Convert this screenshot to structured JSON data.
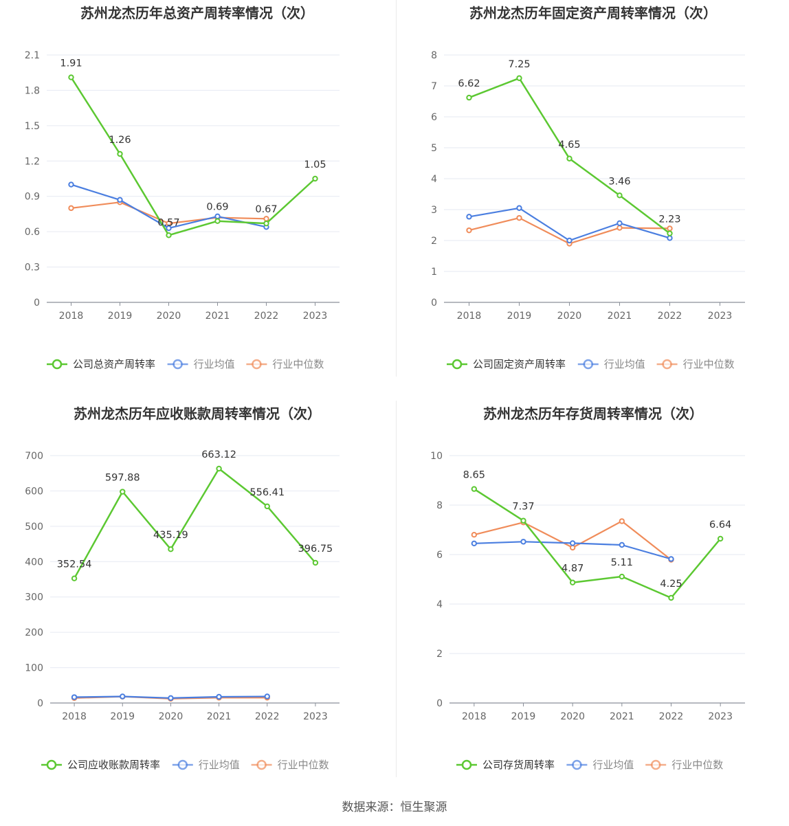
{
  "source": "数据来源：恒生聚源",
  "colors": {
    "company": "#5cc832",
    "mean": "#4a7ee0",
    "median": "#f08c5a"
  },
  "chart_data": [
    {
      "type": "line",
      "title": "苏州龙杰历年总资产周转率情况（次）",
      "x": [
        "2018",
        "2019",
        "2020",
        "2021",
        "2022",
        "2023"
      ],
      "ylim": [
        0,
        2.1
      ],
      "yticks": [
        "0",
        "0.3",
        "0.6",
        "0.9",
        "1.2",
        "1.5",
        "1.8",
        "2.1"
      ],
      "legend_position": "bottom",
      "series": [
        {
          "name": "公司总资产周转率",
          "values": [
            1.91,
            1.26,
            0.57,
            0.69,
            0.67,
            1.05
          ],
          "labels": [
            "1.91",
            "1.26",
            "0.57",
            "0.69",
            "0.67",
            "1.05"
          ]
        },
        {
          "name": "行业均值",
          "values": [
            1.0,
            0.87,
            0.63,
            0.73,
            0.64,
            null
          ]
        },
        {
          "name": "行业中位数",
          "values": [
            0.8,
            0.85,
            0.67,
            0.72,
            0.71,
            null
          ]
        }
      ]
    },
    {
      "type": "line",
      "title": "苏州龙杰历年固定资产周转率情况（次）",
      "x": [
        "2018",
        "2019",
        "2020",
        "2021",
        "2022",
        "2023"
      ],
      "ylim": [
        0,
        8
      ],
      "yticks": [
        "0",
        "1",
        "2",
        "3",
        "4",
        "5",
        "6",
        "7",
        "8"
      ],
      "legend_position": "bottom",
      "series": [
        {
          "name": "公司固定资产周转率",
          "values": [
            6.62,
            7.25,
            4.65,
            3.46,
            2.23,
            null
          ],
          "labels": [
            "6.62",
            "7.25",
            "4.65",
            "3.46",
            "2.23",
            ""
          ]
        },
        {
          "name": "行业均值",
          "values": [
            2.77,
            3.05,
            2.0,
            2.56,
            2.08,
            null
          ]
        },
        {
          "name": "行业中位数",
          "values": [
            2.33,
            2.73,
            1.9,
            2.41,
            2.39,
            null
          ]
        }
      ]
    },
    {
      "type": "line",
      "title": "苏州龙杰历年应收账款周转率情况（次）",
      "x": [
        "2018",
        "2019",
        "2020",
        "2021",
        "2022",
        "2023"
      ],
      "ylim": [
        0,
        700
      ],
      "yticks": [
        "0",
        "100",
        "200",
        "300",
        "400",
        "500",
        "600",
        "700"
      ],
      "legend_position": "bottom",
      "series": [
        {
          "name": "公司应收账款周转率",
          "values": [
            352.54,
            597.88,
            435.19,
            663.12,
            556.41,
            396.75
          ],
          "labels": [
            "352.54",
            "597.88",
            "435.19",
            "663.12",
            "556.41",
            "396.75"
          ]
        },
        {
          "name": "行业均值",
          "values": [
            16.5,
            18.5,
            14.0,
            17.5,
            18.5,
            null
          ]
        },
        {
          "name": "行业中位数",
          "values": [
            14.0,
            18.0,
            12.0,
            15.0,
            15.0,
            null
          ]
        }
      ]
    },
    {
      "type": "line",
      "title": "苏州龙杰历年存货周转率情况（次）",
      "x": [
        "2018",
        "2019",
        "2020",
        "2021",
        "2022",
        "2023"
      ],
      "ylim": [
        0,
        10
      ],
      "yticks": [
        "0",
        "2",
        "4",
        "6",
        "8",
        "10"
      ],
      "legend_position": "bottom",
      "series": [
        {
          "name": "公司存货周转率",
          "values": [
            8.65,
            7.37,
            4.87,
            5.11,
            4.25,
            6.64
          ],
          "labels": [
            "8.65",
            "7.37",
            "4.87",
            "5.11",
            "4.25",
            "6.64"
          ]
        },
        {
          "name": "行业均值",
          "values": [
            6.45,
            6.52,
            6.46,
            6.39,
            5.82,
            null
          ]
        },
        {
          "name": "行业中位数",
          "values": [
            6.8,
            7.3,
            6.28,
            7.35,
            5.79,
            null
          ]
        }
      ]
    }
  ]
}
